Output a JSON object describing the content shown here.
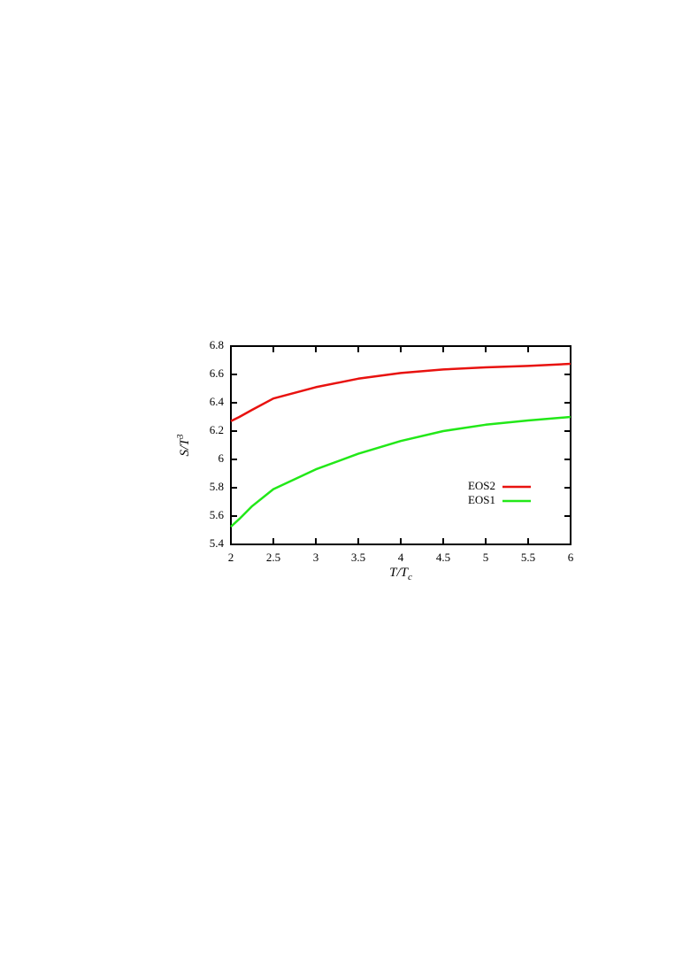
{
  "chart_data": {
    "type": "line",
    "xlabel": [
      "T/T",
      "c"
    ],
    "ylabel": [
      "S/T",
      "3"
    ],
    "x": [
      2,
      2.1,
      2.25,
      2.5,
      3,
      3.5,
      4,
      4.5,
      5,
      5.5,
      6
    ],
    "series": [
      {
        "name": "EOS2",
        "color": "#e8120f",
        "values": [
          6.27,
          6.3,
          6.35,
          6.43,
          6.51,
          6.57,
          6.61,
          6.635,
          6.65,
          6.66,
          6.675
        ]
      },
      {
        "name": "EOS1",
        "color": "#22e818",
        "values": [
          5.525,
          5.58,
          5.67,
          5.79,
          5.93,
          6.04,
          6.13,
          6.2,
          6.245,
          6.275,
          6.3
        ]
      }
    ],
    "xlim": [
      2,
      6
    ],
    "xticks": [
      2,
      2.5,
      3,
      3.5,
      4,
      4.5,
      5,
      5.5,
      6
    ],
    "ylim": [
      5.4,
      6.8
    ],
    "yticks": [
      5.4,
      5.6,
      5.8,
      6,
      6.2,
      6.4,
      6.6,
      6.8
    ],
    "grid": false
  }
}
